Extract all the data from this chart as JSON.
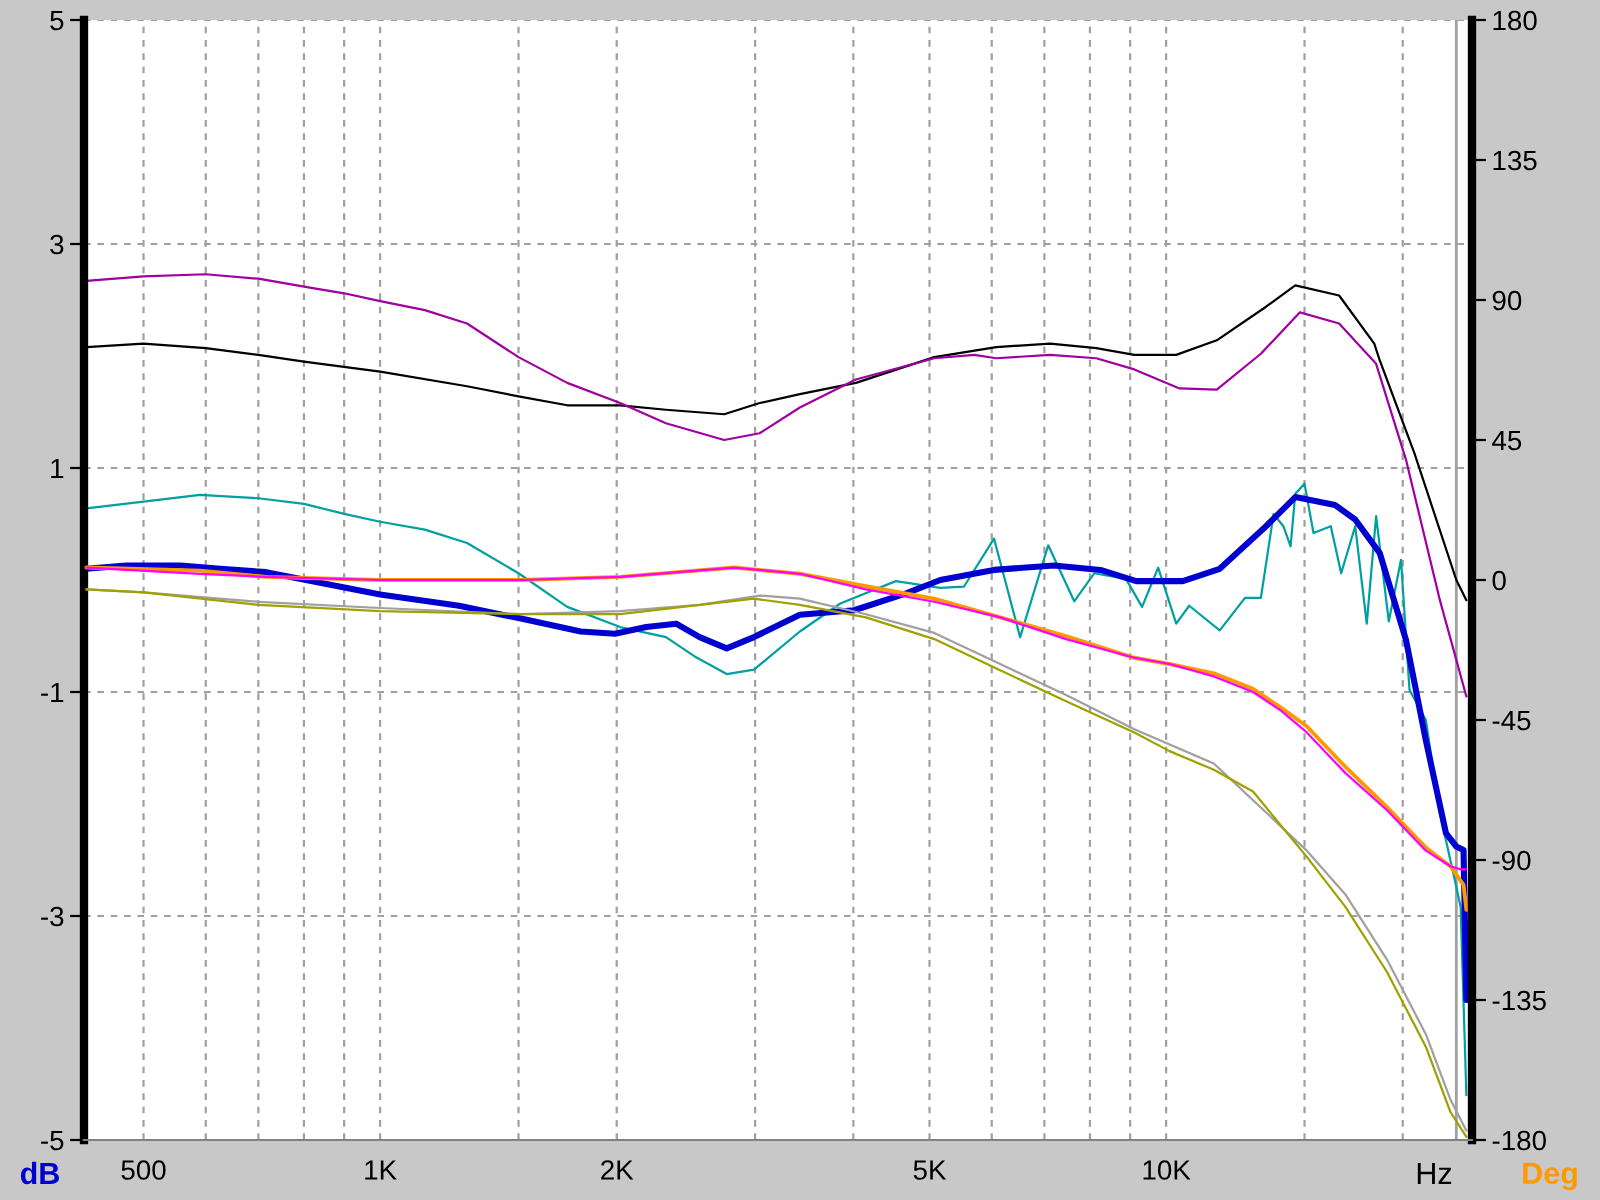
{
  "chart_data": {
    "type": "line",
    "xlabel": "Hz",
    "ylabel": "dB",
    "y2label": "Deg",
    "log": "x",
    "xlim": [
      420,
      24500
    ],
    "xticks": [
      500,
      {
        "value": 600,
        "label": null
      },
      {
        "value": 700,
        "label": null
      },
      {
        "value": 800,
        "label": null
      },
      {
        "value": 900,
        "label": null
      },
      {
        "value": 1000,
        "label": "1K"
      },
      {
        "value": 1500,
        "label": null
      },
      {
        "value": 2000,
        "label": "2K"
      },
      {
        "value": 3000,
        "label": null
      },
      {
        "value": 4000,
        "label": null
      },
      {
        "value": 5000,
        "label": "5K"
      },
      {
        "value": 6000,
        "label": null
      },
      {
        "value": 7000,
        "label": null
      },
      {
        "value": 8000,
        "label": null
      },
      {
        "value": 9000,
        "label": null
      },
      {
        "value": 10000,
        "label": "10K"
      },
      {
        "value": 15000,
        "label": null
      },
      {
        "value": 20000,
        "label": null
      }
    ],
    "ylim": [
      -5,
      5
    ],
    "yticks": [
      -5,
      -3,
      -1,
      1,
      3,
      5
    ],
    "y2lim": [
      -180,
      180
    ],
    "y2ticks": [
      -180,
      -135,
      -90,
      -45,
      0,
      45,
      90,
      135,
      180
    ],
    "grid": true,
    "ref_lines": [
      {
        "axis": "x",
        "value": 23400,
        "color": "#a0a0a0",
        "line_style": "solid"
      }
    ],
    "series": [
      {
        "color": "#000000",
        "x": [
          423,
          500,
          600,
          700,
          800,
          1000,
          1290,
          1500,
          1730,
          2020,
          2310,
          2740,
          3040,
          3420,
          4030,
          5070,
          6080,
          7120,
          8150,
          9110,
          10300,
          11600,
          13400,
          14600,
          16600,
          18400,
          18700,
          20700,
          23400,
          24100
        ],
        "values": [
          2.08,
          2.11,
          2.07,
          2.01,
          1.95,
          1.86,
          1.73,
          1.64,
          1.56,
          1.56,
          1.52,
          1.48,
          1.58,
          1.66,
          1.76,
          1.99,
          2.08,
          2.11,
          2.07,
          2.01,
          2.01,
          2.14,
          2.44,
          2.63,
          2.54,
          2.11,
          1.96,
          1.13,
          0.0,
          -0.18
        ]
      },
      {
        "color": "#a000a0",
        "x": [
          423,
          500,
          600,
          700,
          800,
          900,
          1000,
          1140,
          1290,
          1500,
          1730,
          2020,
          2310,
          2740,
          3040,
          3420,
          4030,
          5070,
          5700,
          6080,
          7120,
          8150,
          9110,
          10400,
          11600,
          13200,
          14800,
          16600,
          18500,
          20200,
          22300,
          24100
        ],
        "values": [
          2.67,
          2.71,
          2.73,
          2.69,
          2.62,
          2.56,
          2.49,
          2.41,
          2.29,
          1.99,
          1.76,
          1.58,
          1.4,
          1.25,
          1.31,
          1.54,
          1.79,
          1.98,
          2.01,
          1.98,
          2.01,
          1.98,
          1.88,
          1.71,
          1.7,
          2.02,
          2.39,
          2.29,
          1.93,
          1.07,
          -0.18,
          -1.04
        ]
      },
      {
        "color": "#00a0a0",
        "x": [
          423,
          500,
          590,
          700,
          800,
          900,
          1000,
          1140,
          1290,
          1500,
          1730,
          2020,
          2310,
          2510,
          2760,
          2990,
          3420,
          3850,
          4530,
          5160,
          5530,
          6040,
          6520,
          7080,
          7640,
          8100,
          8890,
          9320,
          9770,
          10300,
          10700,
          11700,
          12600,
          13200,
          13700,
          14100,
          14400,
          14600,
          15000,
          15400,
          16200,
          16700,
          17400,
          18000,
          18500,
          19200,
          19900,
          20400,
          21400,
          22300,
          23300,
          23700,
          24100
        ],
        "values": [
          0.64,
          0.7,
          0.76,
          0.73,
          0.68,
          0.59,
          0.52,
          0.45,
          0.33,
          0.06,
          -0.24,
          -0.42,
          -0.51,
          -0.68,
          -0.84,
          -0.8,
          -0.46,
          -0.21,
          -0.01,
          -0.07,
          -0.06,
          0.37,
          -0.51,
          0.31,
          -0.19,
          0.06,
          0.01,
          -0.24,
          0.11,
          -0.39,
          -0.23,
          -0.45,
          -0.16,
          -0.16,
          0.59,
          0.48,
          0.3,
          0.77,
          0.86,
          0.42,
          0.48,
          0.06,
          0.48,
          -0.39,
          0.57,
          -0.37,
          0.18,
          -0.98,
          -1.25,
          -2.08,
          -2.68,
          -2.92,
          -4.6
        ]
      },
      {
        "color": "#a0a0a0",
        "axis": "y2",
        "x": [
          423,
          500,
          700,
          1000,
          1510,
          2020,
          2550,
          3040,
          3420,
          4150,
          5070,
          6150,
          7460,
          9110,
          11500,
          15100,
          16900,
          19100,
          21400,
          23000,
          24100
        ],
        "values": [
          -3,
          -4,
          -7,
          -9,
          -11,
          -10,
          -8,
          -5,
          -6,
          -11,
          -17,
          -27,
          -37,
          -48,
          -59,
          -87,
          -101,
          -122,
          -146,
          -167,
          -177
        ]
      },
      {
        "color": "#a0a000",
        "axis": "y2",
        "x": [
          423,
          500,
          700,
          1000,
          1510,
          2020,
          2550,
          2990,
          3420,
          4150,
          5070,
          6150,
          7460,
          9110,
          10100,
          11500,
          12900,
          15100,
          16900,
          19100,
          21400,
          23000,
          24100
        ],
        "values": [
          -3,
          -4,
          -8,
          -10,
          -11,
          -11,
          -8,
          -6,
          -8,
          -12,
          -19,
          -29,
          -39,
          -49,
          -55,
          -61,
          -68,
          -89,
          -105,
          -126,
          -150,
          -171,
          -179
        ]
      },
      {
        "color": "#ff9900",
        "axis": "y2",
        "x": [
          423,
          590,
          716,
          1000,
          1510,
          2020,
          2820,
          3420,
          4150,
          5070,
          6150,
          7460,
          9110,
          10100,
          11500,
          12900,
          14000,
          15100,
          16900,
          19100,
          21400,
          23000,
          23900,
          24100
        ],
        "values": [
          4,
          3,
          1,
          0,
          0,
          1,
          4,
          2,
          -2,
          -6,
          -12,
          -18,
          -25,
          -27,
          -30,
          -35,
          -41,
          -47,
          -60,
          -73,
          -86,
          -92,
          -98,
          -106
        ]
      },
      {
        "color": "#ff00ff",
        "axis": "y2",
        "x": [
          423,
          590,
          716,
          1000,
          1510,
          2020,
          2820,
          3420,
          4150,
          5070,
          6150,
          7460,
          9110,
          10100,
          11500,
          12900,
          14000,
          15100,
          16900,
          19100,
          21400,
          23000,
          23700,
          24100
        ],
        "values": [
          4,
          2,
          1,
          0,
          0,
          1,
          4,
          2,
          -3,
          -7,
          -12,
          -19,
          -25,
          -27,
          -31,
          -36,
          -42,
          -49,
          -62,
          -74,
          -87,
          -92,
          -93,
          -93
        ]
      },
      {
        "color": "#0000d0",
        "x": [
          423,
          475,
          557,
          626,
          716,
          805,
          1000,
          1260,
          1500,
          1800,
          1990,
          2180,
          2380,
          2550,
          2760,
          2990,
          3420,
          4010,
          4670,
          5160,
          6040,
          7200,
          8250,
          9160,
          10500,
          11700,
          13400,
          14600,
          16400,
          17400,
          18700,
          20200,
          21400,
          22700,
          23400,
          23900,
          24100
        ],
        "values": [
          0.1,
          0.13,
          0.13,
          0.1,
          0.07,
          0.0,
          -0.13,
          -0.23,
          -0.34,
          -0.46,
          -0.48,
          -0.42,
          -0.39,
          -0.51,
          -0.61,
          -0.51,
          -0.31,
          -0.27,
          -0.12,
          0.0,
          0.09,
          0.13,
          0.09,
          -0.01,
          -0.01,
          0.1,
          0.48,
          0.74,
          0.67,
          0.54,
          0.24,
          -0.54,
          -1.43,
          -2.26,
          -2.38,
          -2.41,
          -3.75
        ]
      }
    ]
  }
}
